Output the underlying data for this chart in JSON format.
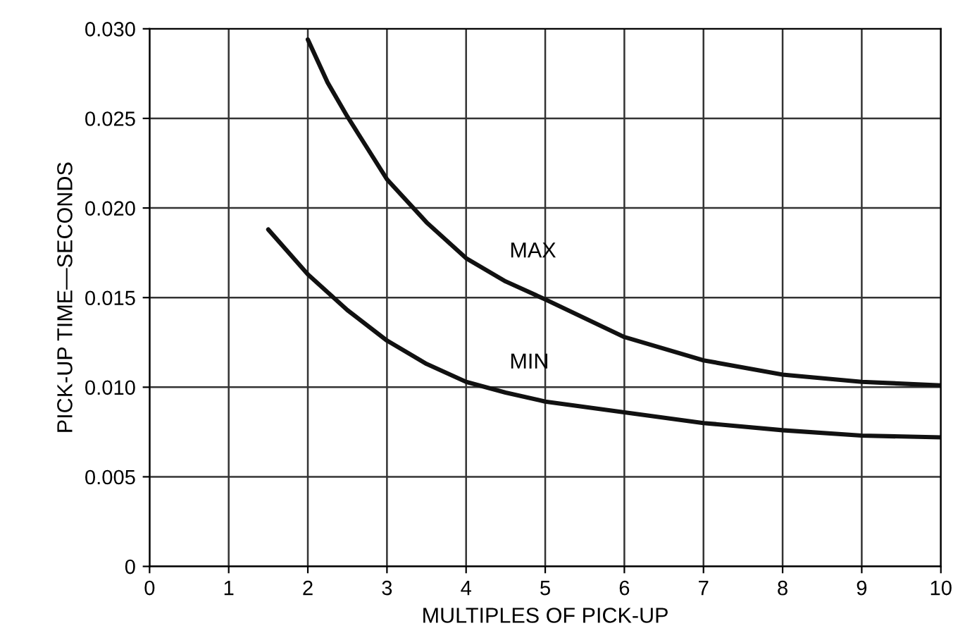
{
  "chart_data": {
    "type": "line",
    "xlabel": "MULTIPLES OF PICK-UP",
    "ylabel": "PICK-UP TIME—SECONDS",
    "series": [
      {
        "name": "MAX",
        "color": "#111111",
        "x": [
          2,
          2.25,
          2.5,
          3,
          3.5,
          4,
          4.5,
          5,
          6,
          7,
          8,
          9,
          10
        ],
        "values": [
          0.0294,
          0.027,
          0.0251,
          0.0216,
          0.0192,
          0.0172,
          0.0159,
          0.0149,
          0.0128,
          0.0115,
          0.0107,
          0.0103,
          0.0101
        ]
      },
      {
        "name": "MIN",
        "color": "#111111",
        "x": [
          1.5,
          2,
          2.5,
          3,
          3.5,
          4,
          4.5,
          5,
          6,
          7,
          8,
          9,
          10
        ],
        "values": [
          0.0188,
          0.0163,
          0.0143,
          0.0126,
          0.0113,
          0.0103,
          0.0097,
          0.0092,
          0.0086,
          0.008,
          0.0076,
          0.0073,
          0.0072
        ]
      }
    ],
    "xlim": [
      0,
      10
    ],
    "xticks": [
      0,
      1,
      2,
      3,
      4,
      5,
      6,
      7,
      8,
      9,
      10
    ],
    "ylim": [
      0,
      0.03
    ],
    "yticks": [
      0,
      {
        "value": 0.005,
        "label": "0.005"
      },
      {
        "value": 0.01,
        "label": "0.010"
      },
      {
        "value": 0.015,
        "label": "0.015"
      },
      {
        "value": 0.02,
        "label": "0.020"
      },
      {
        "value": 0.025,
        "label": "0.025"
      },
      {
        "value": 0.03,
        "label": "0.030"
      }
    ],
    "grid": true,
    "line_style": "solid",
    "marker": "none",
    "legend": false
  }
}
